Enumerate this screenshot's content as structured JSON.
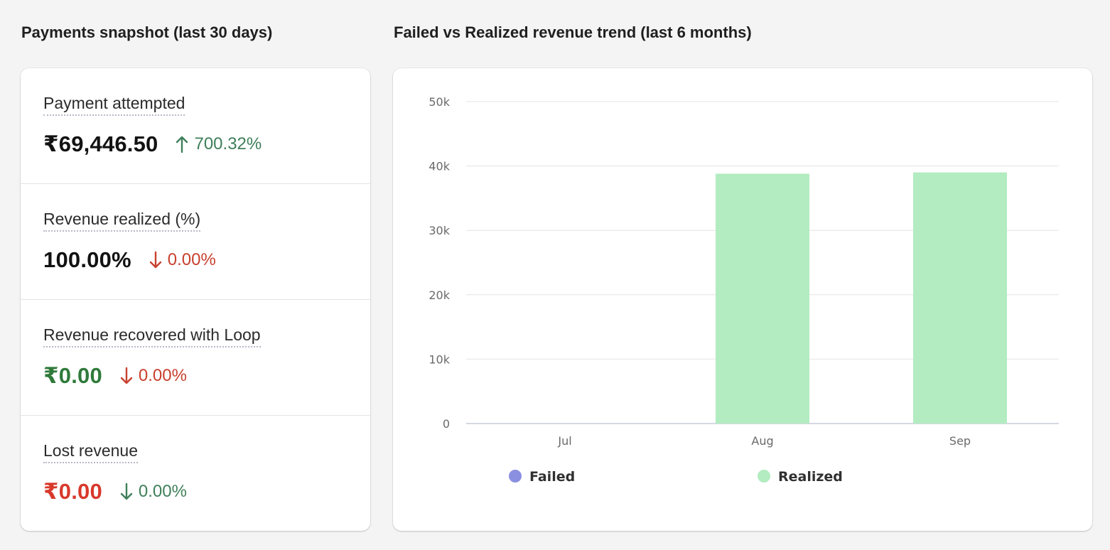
{
  "snapshot": {
    "title": "Payments snapshot (last 30 days)",
    "metrics": [
      {
        "label": "Payment attempted",
        "value": "₹69,446.50",
        "change": "700.32%",
        "direction": "up",
        "tone": "green"
      },
      {
        "label": "Revenue realized (%)",
        "value": "100.00%",
        "change": "0.00%",
        "direction": "down",
        "tone": "red"
      },
      {
        "label": "Revenue recovered with Loop",
        "value": "₹0.00",
        "change": "0.00%",
        "direction": "down",
        "tone": "red"
      },
      {
        "label": "Lost revenue",
        "value": "₹0.00",
        "change": "0.00%",
        "direction": "down",
        "tone": "green"
      }
    ]
  },
  "chart": {
    "title": "Failed vs Realized revenue trend (last 6 months)"
  },
  "chart_data": {
    "type": "bar",
    "title": "Failed vs Realized revenue trend (last 6 months)",
    "categories": [
      "Jul",
      "Aug",
      "Sep"
    ],
    "series": [
      {
        "name": "Failed",
        "color": "#8b8fe0",
        "values": [
          0,
          0,
          0
        ]
      },
      {
        "name": "Realized",
        "color": "#b2ecc0",
        "values": [
          0,
          38800,
          39000
        ]
      }
    ],
    "ylim": [
      0,
      50000
    ],
    "yticks": [
      0,
      10000,
      20000,
      30000,
      40000,
      50000
    ],
    "ytick_labels": [
      "0",
      "10k",
      "20k",
      "30k",
      "40k",
      "50k"
    ],
    "xlabel": "",
    "ylabel": "",
    "grid": true,
    "legend": "bottom"
  }
}
